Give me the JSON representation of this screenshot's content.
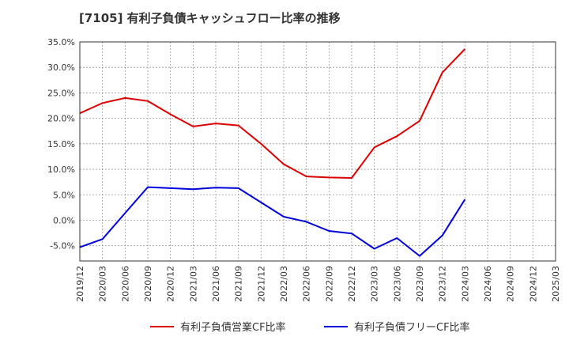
{
  "chart_data": {
    "type": "line",
    "title": "[7105]  有利子負債キャッシュフロー比率の推移",
    "xlabel": "",
    "ylabel": "",
    "ylim": [
      -8,
      35
    ],
    "y_ticks": [
      35,
      30,
      25,
      20,
      15,
      10,
      5,
      0,
      -5
    ],
    "y_tick_labels": [
      "35.0%",
      "30.0%",
      "25.0%",
      "20.0%",
      "15.0%",
      "10.0%",
      "5.0%",
      "0.0%",
      "-5.0%"
    ],
    "x": [
      "2019/12",
      "2020/03",
      "2020/06",
      "2020/09",
      "2020/12",
      "2021/03",
      "2021/06",
      "2021/09",
      "2021/12",
      "2022/03",
      "2022/06",
      "2022/09",
      "2022/12",
      "2023/03",
      "2023/06",
      "2023/09",
      "2023/12",
      "2024/03",
      "2024/06",
      "2024/09",
      "2024/12",
      "2025/03"
    ],
    "grid": true,
    "legend_position": "bottom",
    "series": [
      {
        "name": "有利子負債営業CF比率",
        "color": "#dd0000",
        "values": [
          21.0,
          23.0,
          24.0,
          23.4,
          20.8,
          18.4,
          19.0,
          18.6,
          15.0,
          11.0,
          8.6,
          8.4,
          8.3,
          14.3,
          16.5,
          19.5,
          29.0,
          33.6,
          null,
          null,
          null,
          null
        ]
      },
      {
        "name": "有利子負債フリーCF比率",
        "color": "#0000dd",
        "values": [
          -5.3,
          -3.7,
          1.4,
          6.5,
          6.3,
          6.1,
          6.4,
          6.3,
          3.5,
          0.7,
          -0.3,
          -2.1,
          -2.6,
          -5.6,
          -3.5,
          -7.0,
          -3.0,
          4.1,
          null,
          null,
          null,
          null
        ]
      }
    ]
  }
}
